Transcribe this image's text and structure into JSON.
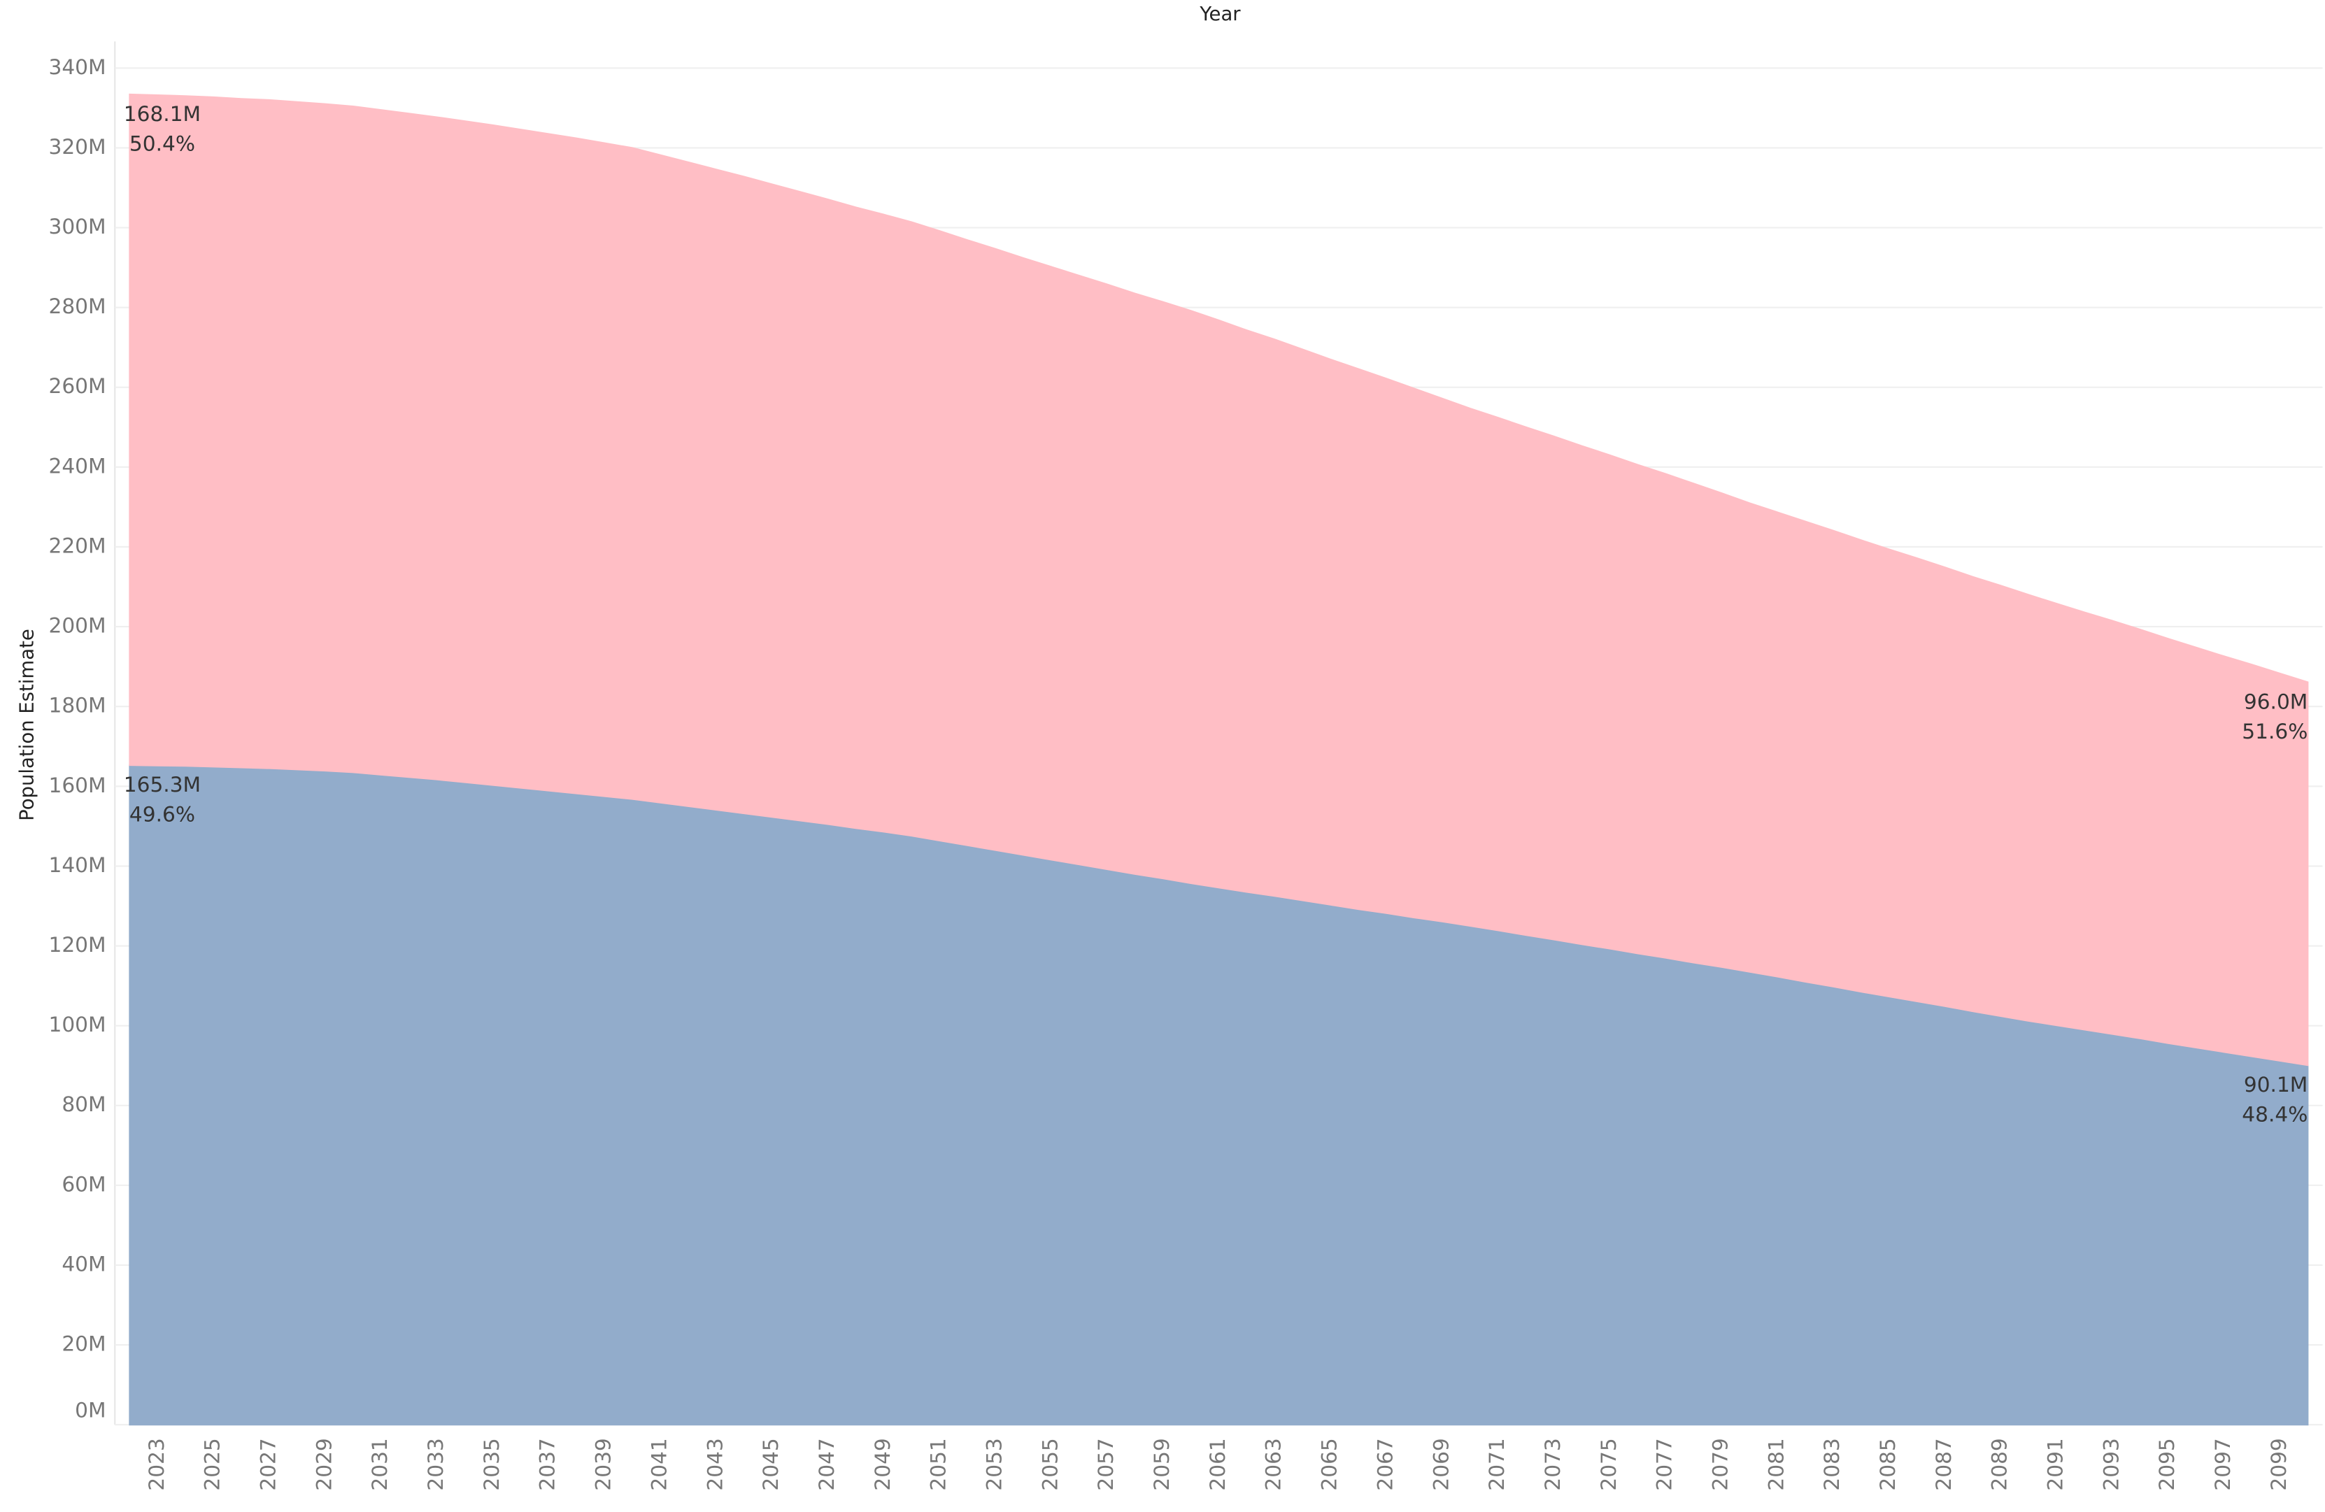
{
  "chart_data": {
    "type": "stacked_area",
    "x_label": "Year",
    "y_label": "Population Estimate",
    "categories": [
      null,
      "2023",
      null,
      "2025",
      null,
      "2027",
      null,
      "2029",
      null,
      "2031",
      null,
      "2033",
      null,
      "2035",
      null,
      "2037",
      null,
      "2039",
      null,
      "2041",
      null,
      "2043",
      null,
      "2045",
      null,
      "2047",
      null,
      "2049",
      null,
      "2051",
      null,
      "2053",
      null,
      "2055",
      null,
      "2057",
      null,
      "2059",
      null,
      "2061",
      null,
      "2063",
      null,
      "2065",
      null,
      "2067",
      null,
      "2069",
      null,
      "2071",
      null,
      "2073",
      null,
      "2075",
      null,
      "2077",
      null,
      "2079",
      null,
      "2081",
      null,
      "2083",
      null,
      "2085",
      null,
      "2087",
      null,
      "2089",
      null,
      "2091",
      null,
      "2093",
      null,
      "2095",
      null,
      "2097",
      null,
      "2099",
      null
    ],
    "ylim": [
      0,
      340
    ],
    "yticks": [
      {
        "value": 0,
        "label": "0M"
      },
      {
        "value": 20,
        "label": "20M"
      },
      {
        "value": 40,
        "label": "40M"
      },
      {
        "value": 60,
        "label": "60M"
      },
      {
        "value": 80,
        "label": "80M"
      },
      {
        "value": 100,
        "label": "100M"
      },
      {
        "value": 120,
        "label": "120M"
      },
      {
        "value": 140,
        "label": "140M"
      },
      {
        "value": 160,
        "label": "160M"
      },
      {
        "value": 180,
        "label": "180M"
      },
      {
        "value": 200,
        "label": "200M"
      },
      {
        "value": 220,
        "label": "220M"
      },
      {
        "value": 240,
        "label": "240M"
      },
      {
        "value": 260,
        "label": "260M"
      },
      {
        "value": 280,
        "label": "280M"
      },
      {
        "value": 300,
        "label": "300M"
      },
      {
        "value": 320,
        "label": "320M"
      },
      {
        "value": 340,
        "label": "340M"
      }
    ],
    "grid": true,
    "series": [
      {
        "color": "#92accb",
        "values": [
          165.3,
          165.2,
          165.1,
          164.9,
          164.7,
          164.5,
          164.2,
          163.9,
          163.5,
          162.9,
          162.3,
          161.7,
          161.0,
          160.3,
          159.6,
          158.9,
          158.2,
          157.5,
          156.8,
          155.9,
          155.0,
          154.1,
          153.2,
          152.3,
          151.4,
          150.5,
          149.5,
          148.6,
          147.6,
          146.4,
          145.2,
          144.0,
          142.8,
          141.6,
          140.4,
          139.2,
          138.0,
          136.9,
          135.7,
          134.6,
          133.5,
          132.5,
          131.4,
          130.3,
          129.2,
          128.2,
          127.1,
          126.1,
          125.0,
          123.9,
          122.7,
          121.6,
          120.4,
          119.3,
          118.1,
          117.0,
          115.8,
          114.7,
          113.5,
          112.3,
          111.0,
          109.8,
          108.5,
          107.3,
          106.1,
          104.9,
          103.6,
          102.4,
          101.2,
          100.1,
          99.0,
          97.9,
          96.8,
          95.6,
          94.5,
          93.4,
          92.3,
          91.2,
          90.1
        ],
        "value_labels": [
          "165.3M",
          null,
          null,
          null,
          null,
          null,
          null,
          null,
          null,
          null,
          null,
          null,
          null,
          null,
          null,
          null,
          null,
          null,
          null,
          null,
          null,
          null,
          null,
          null,
          null,
          null,
          null,
          null,
          null,
          null,
          null,
          null,
          null,
          null,
          null,
          null,
          null,
          null,
          null,
          null,
          null,
          null,
          null,
          null,
          null,
          null,
          null,
          null,
          null,
          null,
          null,
          null,
          null,
          null,
          null,
          null,
          null,
          null,
          null,
          null,
          null,
          null,
          null,
          null,
          null,
          null,
          null,
          null,
          null,
          null,
          null,
          null,
          null,
          null,
          null,
          null,
          null,
          null,
          "90.1M"
        ],
        "percent_labels": [
          "49.6%",
          null,
          null,
          null,
          null,
          null,
          null,
          null,
          null,
          null,
          null,
          null,
          null,
          null,
          null,
          null,
          null,
          null,
          null,
          null,
          null,
          null,
          null,
          null,
          null,
          null,
          null,
          null,
          null,
          null,
          null,
          null,
          null,
          null,
          null,
          null,
          null,
          null,
          null,
          null,
          null,
          null,
          null,
          null,
          null,
          null,
          null,
          null,
          null,
          null,
          null,
          null,
          null,
          null,
          null,
          null,
          null,
          null,
          null,
          null,
          null,
          null,
          null,
          null,
          null,
          null,
          null,
          null,
          null,
          null,
          null,
          null,
          null,
          null,
          null,
          null,
          null,
          null,
          "48.4%"
        ]
      },
      {
        "color": "#ffbec5",
        "values": [
          168.1,
          168.0,
          167.9,
          167.8,
          167.6,
          167.5,
          167.3,
          167.1,
          166.9,
          166.6,
          166.3,
          166.0,
          165.7,
          165.4,
          165.0,
          164.6,
          164.2,
          163.7,
          163.2,
          162.3,
          161.4,
          160.5,
          159.6,
          158.6,
          157.6,
          156.6,
          155.6,
          154.7,
          153.8,
          152.8,
          151.7,
          150.7,
          149.6,
          148.6,
          147.6,
          146.6,
          145.5,
          144.5,
          143.5,
          142.2,
          140.8,
          139.5,
          138.1,
          136.7,
          135.4,
          134.0,
          132.6,
          131.1,
          129.7,
          128.5,
          127.3,
          126.1,
          124.9,
          123.7,
          122.5,
          121.3,
          120.1,
          118.8,
          117.5,
          116.4,
          115.4,
          114.3,
          113.2,
          112.1,
          111.1,
          110.0,
          108.9,
          107.9,
          106.8,
          105.7,
          104.6,
          103.6,
          102.5,
          101.4,
          100.3,
          99.2,
          98.2,
          97.1,
          96.0
        ],
        "value_labels": [
          "168.1M",
          null,
          null,
          null,
          null,
          null,
          null,
          null,
          null,
          null,
          null,
          null,
          null,
          null,
          null,
          null,
          null,
          null,
          null,
          null,
          null,
          null,
          null,
          null,
          null,
          null,
          null,
          null,
          null,
          null,
          null,
          null,
          null,
          null,
          null,
          null,
          null,
          null,
          null,
          null,
          null,
          null,
          null,
          null,
          null,
          null,
          null,
          null,
          null,
          null,
          null,
          null,
          null,
          null,
          null,
          null,
          null,
          null,
          null,
          null,
          null,
          null,
          null,
          null,
          null,
          null,
          null,
          null,
          null,
          null,
          null,
          null,
          null,
          null,
          null,
          null,
          null,
          null,
          "96.0M"
        ],
        "percent_labels": [
          "50.4%",
          null,
          null,
          null,
          null,
          null,
          null,
          null,
          null,
          null,
          null,
          null,
          null,
          null,
          null,
          null,
          null,
          null,
          null,
          null,
          null,
          null,
          null,
          null,
          null,
          null,
          null,
          null,
          null,
          null,
          null,
          null,
          null,
          null,
          null,
          null,
          null,
          null,
          null,
          null,
          null,
          null,
          null,
          null,
          null,
          null,
          null,
          null,
          null,
          null,
          null,
          null,
          null,
          null,
          null,
          null,
          null,
          null,
          null,
          null,
          null,
          null,
          null,
          null,
          null,
          null,
          null,
          null,
          null,
          null,
          null,
          null,
          null,
          null,
          null,
          null,
          null,
          null,
          "51.6%"
        ]
      }
    ]
  }
}
